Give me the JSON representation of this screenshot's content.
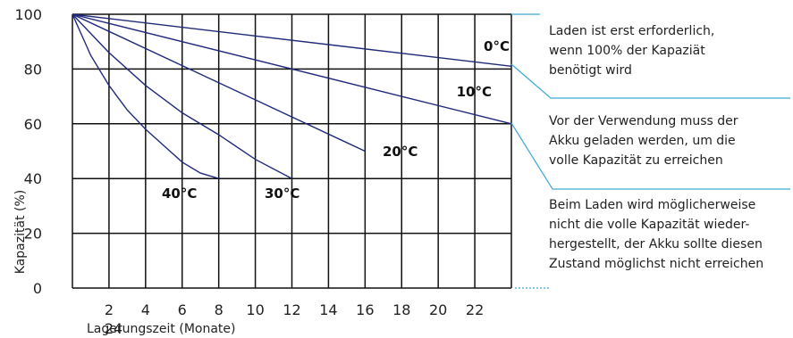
{
  "chart_data": {
    "type": "line",
    "title": "",
    "xlabel": "Lagerungszeit (Monate)",
    "ylabel": "Kapazität (%)",
    "xlim": [
      0,
      24
    ],
    "ylim": [
      0,
      100
    ],
    "x_ticks": [
      2,
      4,
      6,
      8,
      10,
      12,
      14,
      16,
      18,
      20,
      22
    ],
    "x_extra_tick": "24",
    "y_ticks": [
      0,
      20,
      40,
      60,
      80,
      100
    ],
    "grid": true,
    "legend": "none",
    "series": [
      {
        "name": "0°C",
        "x": [
          0,
          24
        ],
        "y": [
          100,
          81
        ]
      },
      {
        "name": "10°C",
        "x": [
          0,
          24
        ],
        "y": [
          100,
          60
        ]
      },
      {
        "name": "20°C",
        "x": [
          0,
          16
        ],
        "y": [
          100,
          50
        ]
      },
      {
        "name": "30°C",
        "x": [
          0,
          2,
          4,
          6,
          8,
          10,
          12
        ],
        "y": [
          100,
          86,
          74,
          64,
          56,
          47,
          40
        ]
      },
      {
        "name": "40°C",
        "x": [
          0,
          1,
          2,
          3,
          4,
          5,
          6,
          7,
          8
        ],
        "y": [
          100,
          85,
          74,
          65,
          58,
          52,
          46,
          42,
          40
        ]
      }
    ],
    "annotations": [
      {
        "lines": [
          "Laden ist erst erforderlich,",
          "wenn 100% der Kapaziät",
          "benötigt wird"
        ]
      },
      {
        "lines": [
          "Vor der Verwendung muss der",
          "Akku geladen werden, um die",
          "volle Kapazität zu erreichen"
        ]
      },
      {
        "lines": [
          "Beim Laden wird möglicherweise",
          "nicht die volle Kapazität wieder-",
          "hergestellt, der Akku sollte diesen",
          "Zustand möglichst nicht erreichen"
        ]
      }
    ],
    "colors": {
      "curve": "#1f2a7a",
      "connector": "#3fa9d8",
      "grid": "#111111"
    }
  }
}
